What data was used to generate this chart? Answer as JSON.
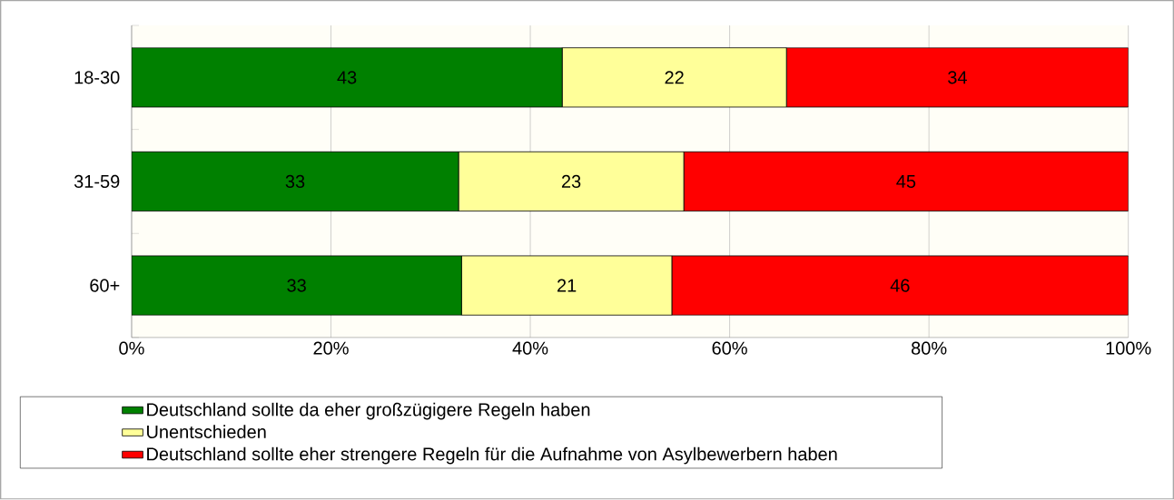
{
  "chart_data": {
    "type": "bar",
    "orientation": "horizontal",
    "stacked": true,
    "categories": [
      "18-30",
      "31-59",
      "60+"
    ],
    "series": [
      {
        "name": "Deutschland sollte da eher großzügigere Regeln haben",
        "color": "#008000",
        "values": [
          43.2,
          32.8,
          33.1
        ],
        "value_labels": [
          "43",
          "33",
          "33"
        ]
      },
      {
        "name": "Unentschieden",
        "color": "#ffff99",
        "values": [
          22.5,
          22.6,
          21.1
        ],
        "value_labels": [
          "22",
          "23",
          "21"
        ]
      },
      {
        "name": "Deutschland sollte eher strengere Regeln für die Aufnahme von Asylbewerbern haben",
        "color": "#ff0000",
        "values": [
          34.3,
          44.6,
          45.8
        ],
        "value_labels": [
          "34",
          "45",
          "46"
        ]
      }
    ],
    "xlim": [
      0,
      100
    ],
    "xticks": [
      {
        "value": 0,
        "label": "0%"
      },
      {
        "value": 20,
        "label": "20%"
      },
      {
        "value": 40,
        "label": "40%"
      },
      {
        "value": 60,
        "label": "60%"
      },
      {
        "value": 80,
        "label": "80%"
      },
      {
        "value": 100,
        "label": "100%"
      }
    ],
    "grid": "x",
    "legend": "bottom"
  }
}
